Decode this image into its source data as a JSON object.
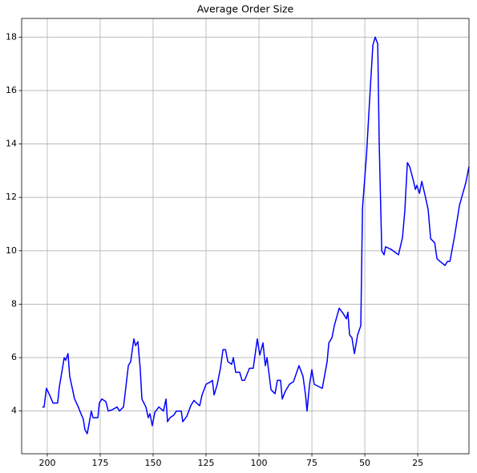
{
  "chart_data": {
    "type": "line",
    "title": "Average Order Size",
    "x": [
      202.3,
      201.5,
      200.4,
      198.9,
      197.3,
      195.1,
      194.3,
      192.0,
      191.3,
      190.2,
      189.4,
      187.1,
      185.6,
      184.1,
      183.0,
      182.2,
      181.1,
      179.2,
      178.4,
      176.1,
      175.4,
      174.2,
      172.3,
      171.2,
      169.3,
      167.0,
      165.9,
      164.0,
      163.3,
      161.7,
      160.6,
      159.1,
      158.3,
      157.2,
      156.1,
      155.3,
      153.4,
      152.3,
      151.5,
      150.4,
      149.2,
      147.3,
      145.1,
      143.9,
      143.2,
      142.0,
      140.2,
      139.0,
      136.7,
      136.0,
      134.1,
      132.2,
      130.7,
      129.5,
      128.0,
      126.9,
      125.0,
      122.7,
      122.0,
      121.2,
      119.7,
      118.2,
      117.0,
      115.8,
      114.7,
      112.9,
      112.1,
      111.0,
      109.1,
      108.0,
      106.8,
      104.5,
      102.7,
      100.8,
      99.6,
      98.1,
      97.0,
      96.2,
      94.3,
      92.4,
      91.3,
      89.8,
      89.0,
      87.5,
      85.6,
      83.7,
      81.1,
      79.2,
      78.0,
      77.3,
      76.1,
      75.0,
      73.9,
      70.1,
      67.8,
      67.0,
      65.5,
      64.4,
      62.1,
      60.2,
      58.7,
      58.0,
      57.2,
      56.1,
      54.9,
      53.4,
      51.9,
      51.1,
      49.2,
      47.7,
      46.2,
      45.1,
      43.9,
      43.2,
      42.0,
      40.9,
      40.2,
      37.5,
      34.1,
      32.2,
      31.1,
      29.9,
      28.8,
      27.3,
      26.1,
      25.4,
      24.2,
      23.1,
      21.6,
      20.1,
      18.9,
      17.0,
      15.9,
      14.4,
      12.1,
      11.0,
      9.8,
      7.6,
      5.3,
      2.3,
      0.8
    ],
    "series": [
      {
        "color": "#0000ff",
        "values": [
          4.15,
          4.15,
          4.85,
          4.6,
          4.3,
          4.3,
          4.9,
          6.0,
          5.9,
          6.15,
          5.3,
          4.45,
          4.2,
          3.9,
          3.7,
          3.3,
          3.15,
          4.0,
          3.75,
          3.75,
          4.3,
          4.45,
          4.35,
          4.0,
          4.05,
          4.15,
          4.0,
          4.15,
          4.6,
          5.7,
          5.85,
          6.7,
          6.45,
          6.6,
          5.6,
          4.45,
          4.15,
          3.75,
          3.9,
          3.45,
          3.95,
          4.15,
          4.0,
          4.45,
          3.6,
          3.75,
          3.85,
          4.0,
          4.0,
          3.6,
          3.8,
          4.2,
          4.4,
          4.3,
          4.2,
          4.6,
          5.0,
          5.1,
          5.15,
          4.6,
          5.0,
          5.6,
          6.3,
          6.3,
          5.85,
          5.75,
          6.0,
          5.45,
          5.45,
          5.15,
          5.15,
          5.6,
          5.6,
          6.7,
          6.1,
          6.55,
          5.7,
          6.0,
          4.8,
          4.65,
          5.15,
          5.15,
          4.45,
          4.75,
          5.0,
          5.1,
          5.7,
          5.3,
          4.6,
          4.0,
          5.0,
          5.55,
          5.0,
          4.85,
          5.85,
          6.55,
          6.75,
          7.2,
          7.85,
          7.65,
          7.45,
          7.7,
          6.85,
          6.75,
          6.15,
          6.85,
          7.2,
          11.6,
          13.6,
          15.7,
          17.7,
          18.0,
          17.75,
          14.0,
          10.0,
          9.85,
          10.15,
          10.05,
          9.85,
          10.5,
          11.5,
          13.3,
          13.15,
          12.7,
          12.3,
          12.45,
          12.15,
          12.6,
          12.1,
          11.55,
          10.45,
          10.3,
          9.7,
          9.6,
          9.45,
          9.6,
          9.6,
          10.55,
          11.7,
          12.55,
          13.15
        ]
      }
    ],
    "xlim": [
      212.1,
      0.8
    ],
    "xticks": [
      200,
      175,
      150,
      125,
      100,
      75,
      50,
      25
    ],
    "ylim": [
      2.4,
      18.7
    ],
    "yticks": [
      4,
      6,
      8,
      10,
      12,
      14,
      16,
      18
    ],
    "grid": true
  }
}
